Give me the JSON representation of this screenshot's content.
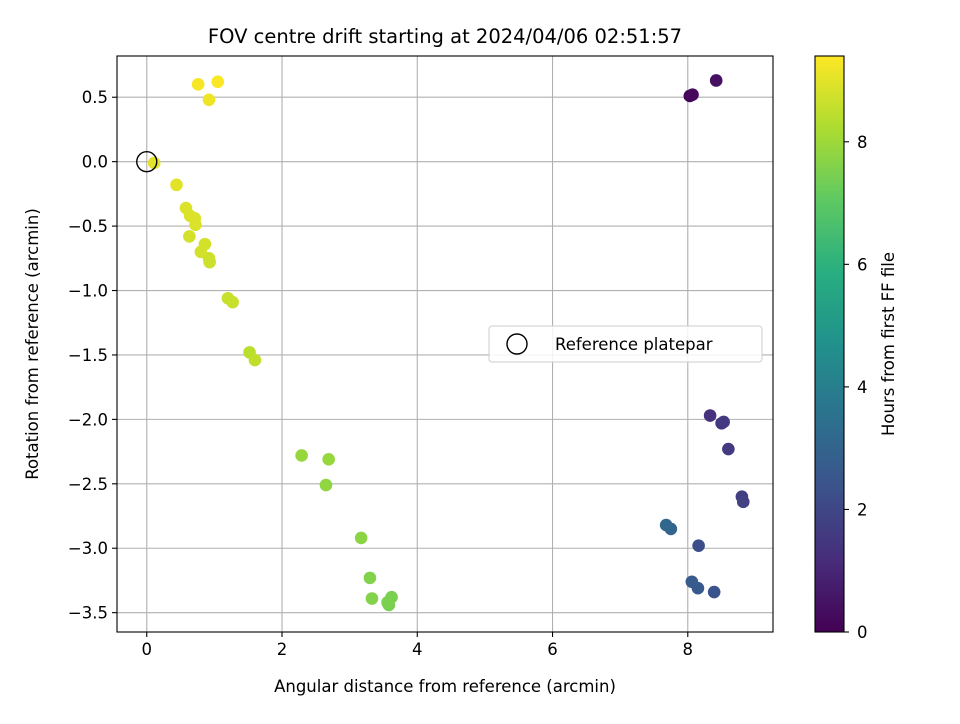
{
  "chart_data": {
    "type": "scatter",
    "title": "FOV centre drift starting at 2024/04/06 02:51:57",
    "xlabel": "Angular distance from reference (arcmin)",
    "ylabel": "Rotation from reference (arcmin)",
    "xlim": [
      -0.44,
      9.26
    ],
    "ylim": [
      -3.65,
      0.82
    ],
    "xticks": [
      0,
      2,
      4,
      6,
      8
    ],
    "xtick_labels": [
      "0",
      "2",
      "4",
      "6",
      "8"
    ],
    "yticks": [
      0.5,
      0.0,
      -0.5,
      -1.0,
      -1.5,
      -2.0,
      -2.5,
      -3.0,
      -3.5
    ],
    "ytick_labels": [
      "0.5",
      "0.0",
      "−0.5",
      "−1.0",
      "−1.5",
      "−2.0",
      "−2.5",
      "−3.0",
      "−3.5"
    ],
    "grid": true,
    "legend": {
      "label": "Reference platepar",
      "placement": "center-right"
    },
    "reference_point": {
      "x": 0,
      "y": 0
    },
    "colorbar": {
      "label": "Hours from first FF file",
      "range": [
        0,
        9.4
      ],
      "ticks": [
        0,
        2,
        4,
        6,
        8
      ],
      "tick_labels": [
        "0",
        "2",
        "4",
        "6",
        "8"
      ],
      "colormap": "viridis"
    },
    "points": [
      {
        "x": 8.03,
        "y": 0.51,
        "c": 0.1
      },
      {
        "x": 8.07,
        "y": 0.52,
        "c": 0.2
      },
      {
        "x": 8.42,
        "y": 0.63,
        "c": 0.4
      },
      {
        "x": 8.33,
        "y": -1.97,
        "c": 1.3
      },
      {
        "x": 8.5,
        "y": -2.03,
        "c": 1.5
      },
      {
        "x": 8.53,
        "y": -2.02,
        "c": 1.6
      },
      {
        "x": 8.6,
        "y": -2.23,
        "c": 1.6
      },
      {
        "x": 8.8,
        "y": -2.6,
        "c": 1.7
      },
      {
        "x": 8.82,
        "y": -2.64,
        "c": 1.8
      },
      {
        "x": 8.16,
        "y": -2.98,
        "c": 2.2
      },
      {
        "x": 8.39,
        "y": -3.34,
        "c": 2.4
      },
      {
        "x": 8.15,
        "y": -3.31,
        "c": 2.6
      },
      {
        "x": 8.06,
        "y": -3.26,
        "c": 2.7
      },
      {
        "x": 7.75,
        "y": -2.85,
        "c": 3.0
      },
      {
        "x": 7.68,
        "y": -2.82,
        "c": 3.1
      },
      {
        "x": 3.58,
        "y": -3.44,
        "c": 7.4
      },
      {
        "x": 3.62,
        "y": -3.38,
        "c": 7.5
      },
      {
        "x": 3.56,
        "y": -3.42,
        "c": 7.5
      },
      {
        "x": 3.33,
        "y": -3.39,
        "c": 7.6
      },
      {
        "x": 3.3,
        "y": -3.23,
        "c": 7.6
      },
      {
        "x": 3.17,
        "y": -2.92,
        "c": 7.7
      },
      {
        "x": 2.65,
        "y": -2.51,
        "c": 7.8
      },
      {
        "x": 2.69,
        "y": -2.31,
        "c": 7.9
      },
      {
        "x": 2.29,
        "y": -2.28,
        "c": 7.9
      },
      {
        "x": 1.52,
        "y": -1.48,
        "c": 8.4
      },
      {
        "x": 1.6,
        "y": -1.54,
        "c": 8.5
      },
      {
        "x": 1.2,
        "y": -1.06,
        "c": 8.6
      },
      {
        "x": 1.27,
        "y": -1.09,
        "c": 8.6
      },
      {
        "x": 0.93,
        "y": -0.78,
        "c": 8.7
      },
      {
        "x": 0.92,
        "y": -0.75,
        "c": 8.7
      },
      {
        "x": 0.86,
        "y": -0.64,
        "c": 8.8
      },
      {
        "x": 0.8,
        "y": -0.7,
        "c": 8.8
      },
      {
        "x": 0.63,
        "y": -0.58,
        "c": 8.8
      },
      {
        "x": 0.72,
        "y": -0.49,
        "c": 8.9
      },
      {
        "x": 0.71,
        "y": -0.44,
        "c": 8.9
      },
      {
        "x": 0.64,
        "y": -0.42,
        "c": 8.9
      },
      {
        "x": 0.58,
        "y": -0.36,
        "c": 8.9
      },
      {
        "x": 0.44,
        "y": -0.18,
        "c": 9.0
      },
      {
        "x": 0.11,
        "y": -0.01,
        "c": 9.0
      },
      {
        "x": 0.92,
        "y": 0.48,
        "c": 9.2
      },
      {
        "x": 0.76,
        "y": 0.6,
        "c": 9.3
      },
      {
        "x": 1.05,
        "y": 0.62,
        "c": 9.35
      }
    ]
  }
}
